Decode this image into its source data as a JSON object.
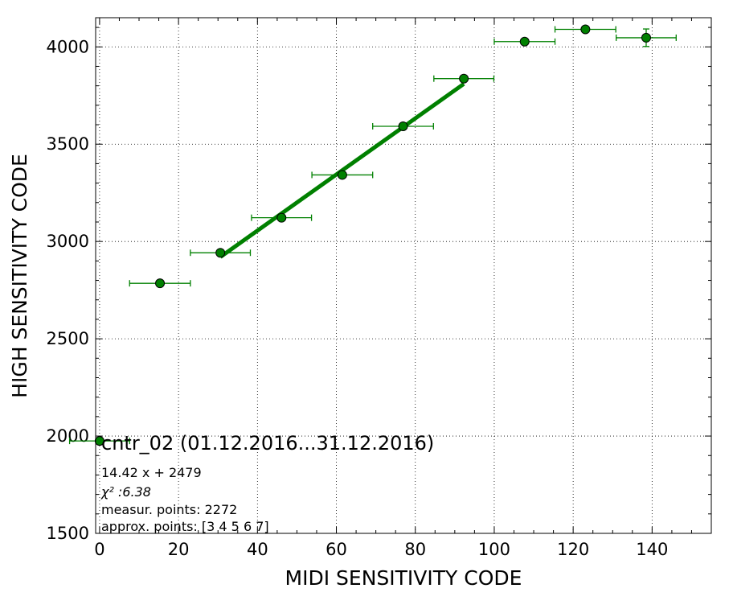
{
  "chart_data": {
    "type": "scatter",
    "title": "cntr_02 (01.12.2016...31.12.2016)",
    "xlabel": "MIDI SENSITIVITY CODE",
    "ylabel": "HIGH SENSITIVITY CODE",
    "xlim": [
      -1,
      155
    ],
    "ylim": [
      1500,
      4150
    ],
    "xticks": [
      0,
      20,
      40,
      60,
      80,
      100,
      120,
      140
    ],
    "yticks": [
      1500,
      2000,
      2500,
      3000,
      3500,
      4000
    ],
    "grid": true,
    "series": [
      {
        "kind": "points-with-xerr",
        "color": "#008000",
        "points": [
          {
            "x": 0,
            "y": 1975,
            "xerr": 7.6,
            "yerr": 0
          },
          {
            "x": 15.3,
            "y": 2785,
            "xerr": 7.7,
            "yerr": 0
          },
          {
            "x": 30.6,
            "y": 2942,
            "xerr": 7.6,
            "yerr": 0
          },
          {
            "x": 46.1,
            "y": 3122,
            "xerr": 7.6,
            "yerr": 0
          },
          {
            "x": 61.5,
            "y": 3342,
            "xerr": 7.7,
            "yerr": 0
          },
          {
            "x": 76.9,
            "y": 3592,
            "xerr": 7.7,
            "yerr": 0
          },
          {
            "x": 92.3,
            "y": 3837,
            "xerr": 7.6,
            "yerr": 0
          },
          {
            "x": 107.7,
            "y": 4027,
            "xerr": 7.7,
            "yerr": 0
          },
          {
            "x": 123.1,
            "y": 4090,
            "xerr": 7.7,
            "yerr": 0
          },
          {
            "x": 138.5,
            "y": 4047,
            "xerr": 7.6,
            "yerr": 45
          }
        ]
      },
      {
        "kind": "fit-line",
        "color": "#008000",
        "slope": 14.42,
        "intercept": 2479,
        "x_range": [
          30.6,
          92.3
        ]
      }
    ],
    "annotations": [
      "14.42 x + 2479",
      "χ² :6.38",
      "measur. points: 2272",
      "approx. points: [3 4 5 6 7]"
    ]
  }
}
